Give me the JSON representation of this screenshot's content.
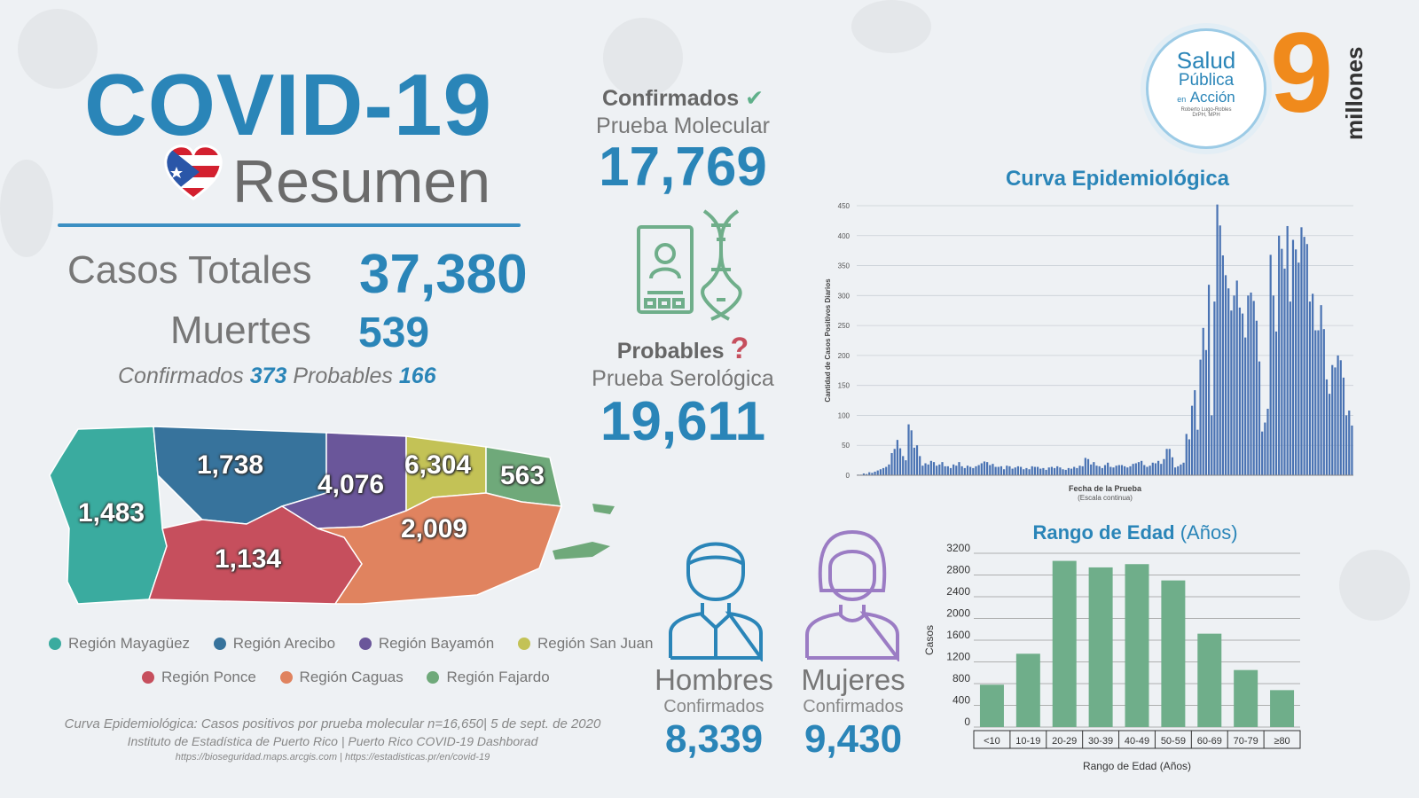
{
  "header": {
    "title": "COVID-19",
    "subtitle": "Resumen"
  },
  "totals": {
    "cases_label": "Casos Totales",
    "cases_value": "37,380",
    "deaths_label": "Muertes",
    "deaths_value": "539",
    "deaths_conf_label": "Confirmados",
    "deaths_conf_value": "373",
    "deaths_prob_label": "Probables",
    "deaths_prob_value": "166"
  },
  "confirmed": {
    "label": "Confirmados",
    "test": "Prueba Molecular",
    "value": "17,769"
  },
  "probable": {
    "label": "Probables",
    "test": "Prueba Serológica",
    "value": "19,611"
  },
  "logo": {
    "line1": "Salud",
    "line2": "Pública",
    "line3": "en",
    "line4": "Acción",
    "line5": "Roberto Lugo-Robles",
    "line6": "DrPH, MPH"
  },
  "brand": {
    "digit": "9",
    "word": "millones"
  },
  "map": {
    "regions": [
      {
        "name": "Región Mayagüez",
        "value": "1,483",
        "color": "#3aab9f"
      },
      {
        "name": "Región Arecibo",
        "value": "1,738",
        "color": "#37739c"
      },
      {
        "name": "Región Bayamón",
        "value": "4,076",
        "color": "#6a569a"
      },
      {
        "name": "Región San Juan",
        "value": "6,304",
        "color": "#c3c256"
      },
      {
        "name": "Región Ponce",
        "value": "1,134",
        "color": "#c64f5d"
      },
      {
        "name": "Región Caguas",
        "value": "2,009",
        "color": "#e0835f"
      },
      {
        "name": "Región Fajardo",
        "value": "563",
        "color": "#6fa97a"
      }
    ]
  },
  "gender": {
    "men_label": "Hombres",
    "men_sub": "Confirmados",
    "men_value": "8,339",
    "women_label": "Mujeres",
    "women_sub": "Confirmados",
    "women_value": "9,430"
  },
  "source": {
    "line1": "Curva Epidemiológica: Casos positivos por prueba molecular n=16,650| 5 de sept. de 2020",
    "line2": "Instituto de Estadística de Puerto Rico | Puerto Rico COVID-19 Dashborad",
    "line3": "https://bioseguridad.maps.arcgis.com | https://estadisticas.pr/en/covid-19"
  },
  "colors": {
    "accent": "#2a85b8",
    "bar_green": "#6fae8a",
    "epi_bar": "#4a73b3",
    "men": "#2a85b8",
    "women": "#9b7cc4"
  },
  "chart_data": [
    {
      "type": "bar",
      "title": "Curva Epidemiológica",
      "xlabel": "Fecha de la Prueba",
      "xlabel_sub": "(Escala continua)",
      "ylabel": "Cantidad de Casos Positivos Diarios",
      "ylim": [
        0,
        450
      ],
      "yticks": [
        0,
        50,
        100,
        150,
        200,
        250,
        300,
        350,
        400,
        450
      ],
      "values": [
        1,
        1,
        3,
        2,
        5,
        4,
        6,
        8,
        10,
        12,
        14,
        18,
        37,
        44,
        59,
        45,
        32,
        25,
        85,
        75,
        46,
        50,
        32,
        16,
        20,
        18,
        24,
        22,
        16,
        18,
        22,
        15,
        15,
        12,
        18,
        16,
        22,
        15,
        12,
        16,
        14,
        12,
        15,
        17,
        20,
        23,
        22,
        17,
        19,
        14,
        14,
        15,
        10,
        16,
        15,
        11,
        13,
        15,
        14,
        10,
        12,
        10,
        15,
        14,
        14,
        11,
        12,
        9,
        13,
        14,
        12,
        15,
        13,
        10,
        9,
        12,
        11,
        14,
        12,
        16,
        15,
        29,
        27,
        18,
        22,
        16,
        15,
        12,
        17,
        21,
        14,
        13,
        16,
        17,
        17,
        15,
        13,
        15,
        19,
        20,
        22,
        24,
        17,
        14,
        16,
        21,
        20,
        24,
        19,
        27,
        44,
        44,
        30,
        13,
        15,
        18,
        21,
        69,
        60,
        116,
        142,
        76,
        193,
        246,
        209,
        318,
        100,
        290,
        452,
        417,
        367,
        334,
        312,
        275,
        300,
        325,
        280,
        270,
        230,
        300,
        305,
        291,
        258,
        190,
        73,
        88,
        111,
        368,
        300,
        240,
        400,
        378,
        345,
        416,
        290,
        393,
        377,
        355,
        414,
        398,
        386,
        290,
        303,
        242,
        242,
        284,
        244,
        160,
        136,
        184,
        180,
        200,
        192,
        163,
        100,
        108,
        83
      ]
    },
    {
      "type": "bar",
      "title": "Rango de Edad",
      "title_suffix": "(Años)",
      "xlabel": "Rango de Edad (Años)",
      "ylabel": "Casos",
      "ylim": [
        0,
        3200
      ],
      "yticks": [
        0,
        400,
        800,
        1200,
        1600,
        2000,
        2400,
        2800,
        3200
      ],
      "categories": [
        "<10",
        "10-19",
        "20-29",
        "30-39",
        "40-49",
        "50-59",
        "60-69",
        "70-79",
        "≥80"
      ],
      "values": [
        780,
        1350,
        3060,
        2940,
        3000,
        2700,
        1720,
        1050,
        680
      ]
    }
  ]
}
